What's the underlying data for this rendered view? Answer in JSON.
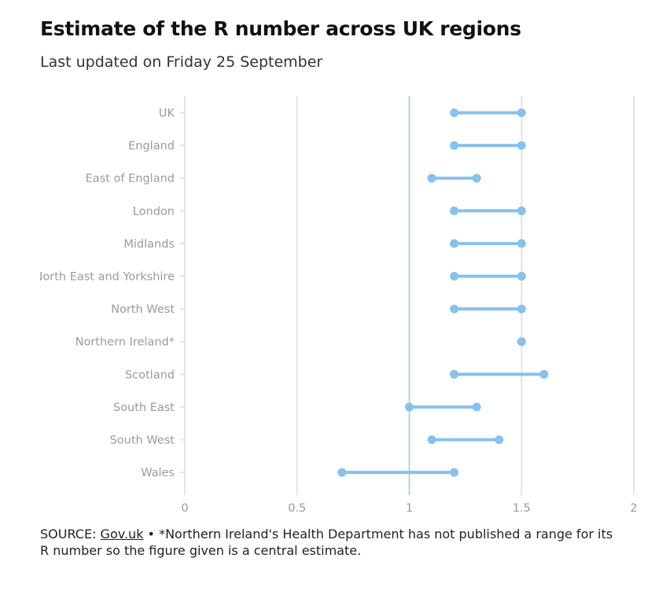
{
  "title": "Estimate of the R number across UK regions",
  "subtitle": "Last updated on Friday 25 September",
  "footer": {
    "source_prefix": "SOURCE: ",
    "source_link": "Gov.uk",
    "note": " • *Northern Ireland's Health Department has not published a range for its R number so the figure given is a central estimate."
  },
  "colors": {
    "accent": "#86c1ef",
    "grid": "#e4e4e4",
    "refline": "#9ccbf2",
    "label": "#9a9a9a"
  },
  "chart_data": {
    "type": "dumbbell",
    "title": "Estimate of the R number across UK regions",
    "xlabel": "",
    "ylabel": "",
    "xlim": [
      0,
      2
    ],
    "xticks": [
      0,
      0.5,
      1,
      1.5,
      2
    ],
    "xtick_labels": [
      "0",
      "0.5",
      "1",
      "1.5",
      "2"
    ],
    "reference_line": 1,
    "grid": true,
    "series": [
      {
        "name": "UK",
        "low": 1.2,
        "high": 1.5
      },
      {
        "name": "England",
        "low": 1.2,
        "high": 1.5
      },
      {
        "name": "East of England",
        "low": 1.1,
        "high": 1.3
      },
      {
        "name": "London",
        "low": 1.2,
        "high": 1.5
      },
      {
        "name": "Midlands",
        "low": 1.2,
        "high": 1.5
      },
      {
        "name": "North East and Yorkshire",
        "low": 1.2,
        "high": 1.5
      },
      {
        "name": "North West",
        "low": 1.2,
        "high": 1.5
      },
      {
        "name": "Northern Ireland*",
        "low": 1.5,
        "high": 1.5
      },
      {
        "name": "Scotland",
        "low": 1.2,
        "high": 1.6
      },
      {
        "name": "South East",
        "low": 1.0,
        "high": 1.3
      },
      {
        "name": "South West",
        "low": 1.1,
        "high": 1.4
      },
      {
        "name": "Wales",
        "low": 0.7,
        "high": 1.2
      }
    ]
  }
}
